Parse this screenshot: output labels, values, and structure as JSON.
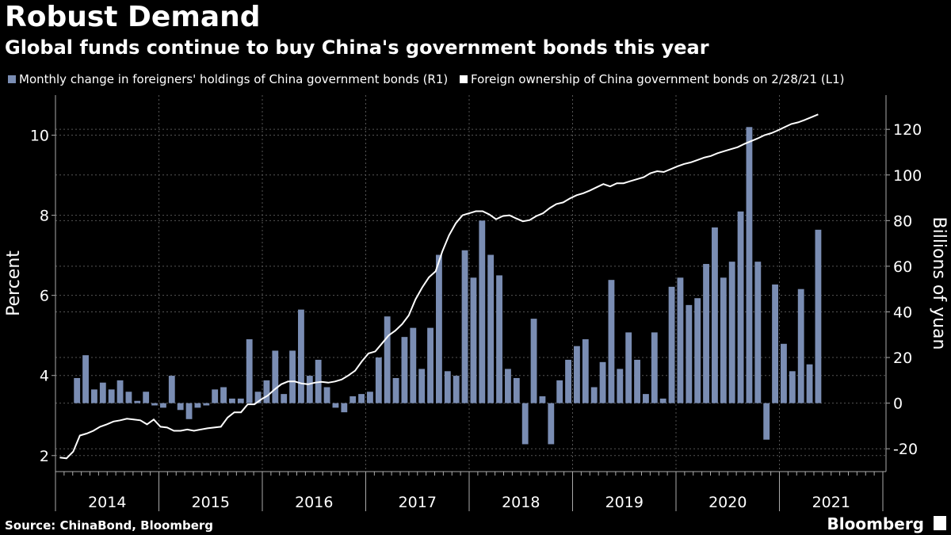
{
  "chart_data": {
    "type": "bar+line",
    "title": "Robust Demand",
    "subtitle": "Global funds continue to buy China's government bonds this year",
    "left_axis_label": "Percent",
    "right_axis_label": "Billions of yuan",
    "left_ylim": [
      1.6,
      11.0
    ],
    "right_ylim": [
      -30,
      135
    ],
    "left_ticks": [
      2,
      4,
      6,
      8,
      10
    ],
    "right_ticks": [
      -20,
      0,
      20,
      40,
      60,
      80,
      100,
      120
    ],
    "left_tick_labels": [
      "2",
      "4",
      "6",
      "8",
      "10"
    ],
    "right_tick_labels": [
      "-20",
      "0",
      "20",
      "40",
      "60",
      "80",
      "100",
      "120"
    ],
    "year_labels": [
      "2014",
      "2015",
      "2016",
      "2017",
      "2018",
      "2019",
      "2020",
      "2021"
    ],
    "x_start": "2014-01",
    "bars": {
      "name": "Monthly change in foreigners' holdings of China government bonds (R1)",
      "color": "#7a8db3",
      "axis": "right",
      "values": [
        0,
        0,
        11,
        21,
        6,
        9,
        6,
        10,
        5,
        1,
        5,
        -1,
        -2,
        12,
        -3,
        -7,
        -2,
        -1,
        6,
        7,
        2,
        2,
        28,
        5,
        10,
        23,
        4,
        23,
        41,
        12,
        19,
        7,
        -2,
        -4,
        3,
        4,
        5,
        20,
        38,
        11,
        29,
        33,
        15,
        33,
        65,
        14,
        12,
        67,
        55,
        80,
        65,
        56,
        15,
        11,
        -18,
        37,
        3,
        -18,
        10,
        19,
        25,
        28,
        7,
        18,
        54,
        15,
        31,
        19,
        4,
        31,
        2,
        51,
        55,
        43,
        46,
        61,
        77,
        55,
        62,
        84,
        121,
        62,
        -16,
        52,
        26,
        14,
        50,
        17,
        76
      ]
    },
    "line": {
      "name": "Foreign ownership of China government bonds on 2/28/21 (L1)",
      "color": "#ffffff",
      "axis": "left",
      "values": [
        1.95,
        1.93,
        2.1,
        2.5,
        2.55,
        2.62,
        2.72,
        2.78,
        2.85,
        2.88,
        2.92,
        2.9,
        2.88,
        2.78,
        2.9,
        2.72,
        2.7,
        2.62,
        2.62,
        2.65,
        2.62,
        2.65,
        2.68,
        2.7,
        2.72,
        2.95,
        3.08,
        3.08,
        3.28,
        3.28,
        3.4,
        3.5,
        3.65,
        3.78,
        3.85,
        3.85,
        3.8,
        3.78,
        3.82,
        3.84,
        3.82,
        3.85,
        3.9,
        4.0,
        4.12,
        4.35,
        4.55,
        4.6,
        4.8,
        5.0,
        5.12,
        5.28,
        5.5,
        5.9,
        6.2,
        6.45,
        6.6,
        7.1,
        7.5,
        7.8,
        8.0,
        8.05,
        8.1,
        8.1,
        8.02,
        7.9,
        7.98,
        8.0,
        7.92,
        7.85,
        7.88,
        7.98,
        8.05,
        8.18,
        8.28,
        8.32,
        8.42,
        8.5,
        8.55,
        8.62,
        8.7,
        8.78,
        8.72,
        8.8,
        8.8,
        8.85,
        8.9,
        8.95,
        9.05,
        9.1,
        9.08,
        9.15,
        9.22,
        9.28,
        9.32,
        9.38,
        9.44,
        9.48,
        9.55,
        9.6,
        9.65,
        9.7,
        9.78,
        9.85,
        9.92,
        10.0,
        10.05,
        10.12,
        10.2,
        10.28,
        10.32,
        10.38,
        10.45,
        10.52
      ]
    },
    "line_values_note": "",
    "legend_position": "top-left"
  },
  "source_text": "Source: ChinaBond, Bloomberg",
  "brand": "Bloomberg"
}
